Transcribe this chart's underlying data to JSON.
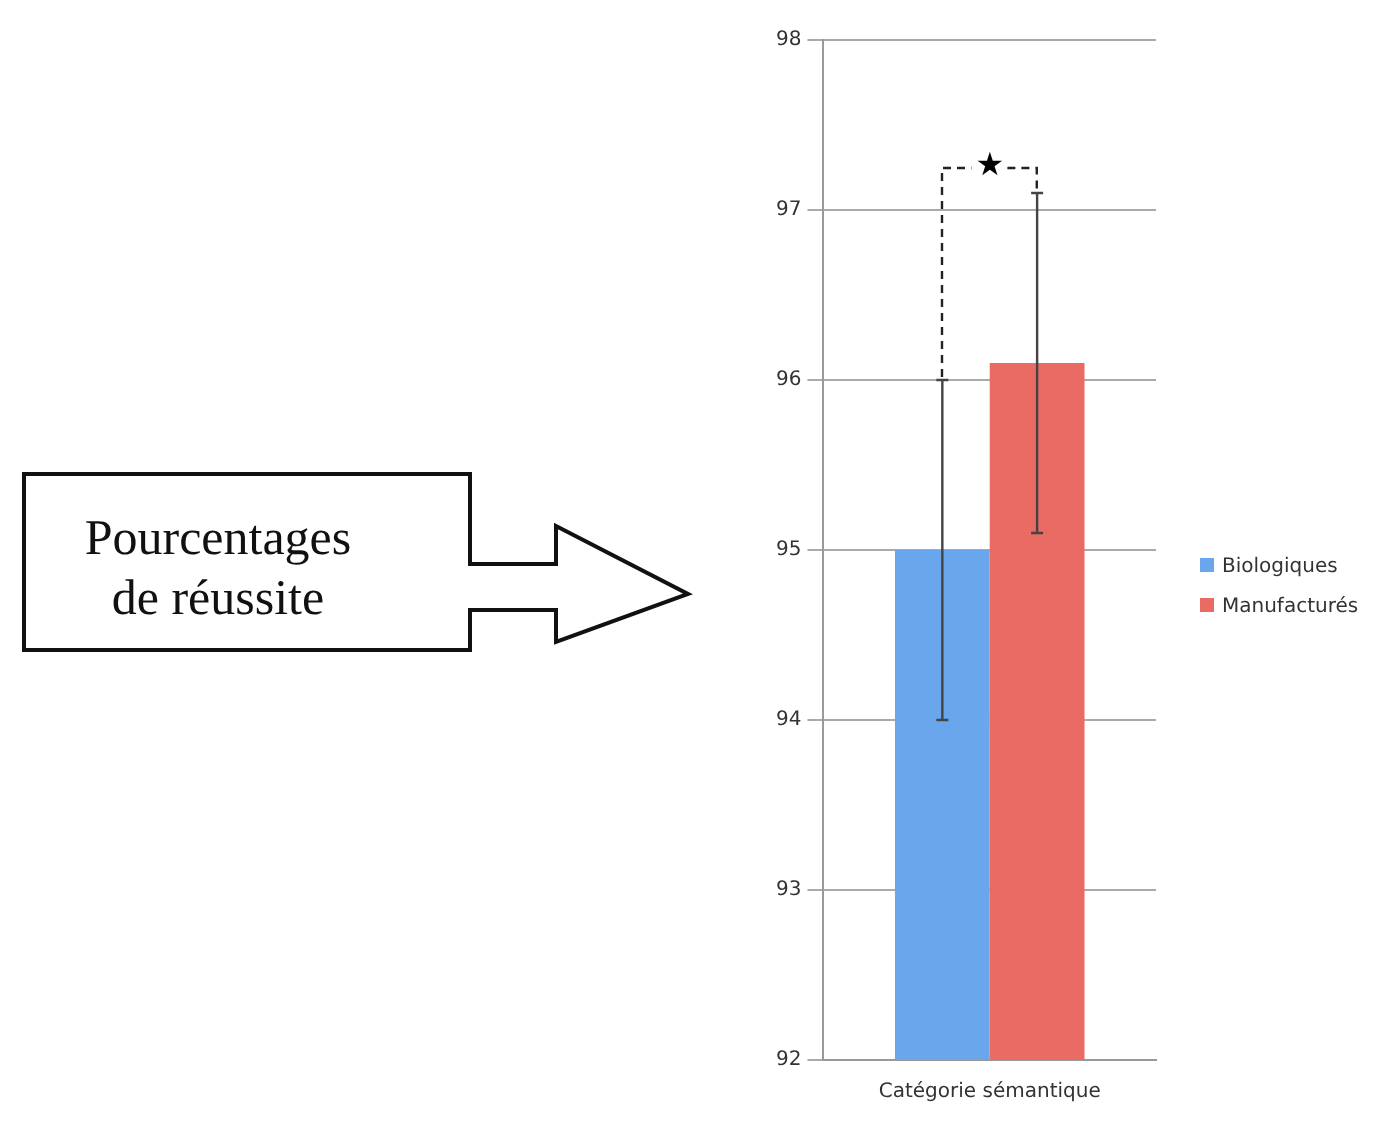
{
  "chart_data": {
    "type": "bar",
    "categories": [
      "Catégorie sémantique"
    ],
    "series": [
      {
        "name": "Biologiques",
        "color": "#6aa6ec",
        "values": [
          95
        ],
        "errors": [
          1
        ]
      },
      {
        "name": "Manufacturés",
        "color": "#ea6b63",
        "values": [
          96.1
        ],
        "errors": [
          1
        ]
      }
    ],
    "ylim": [
      92,
      98
    ],
    "yticks": [
      92,
      93,
      94,
      95,
      96,
      97,
      98
    ],
    "grid": "y",
    "legend": "right",
    "annotations": [
      "Pourcentages de réussite",
      "★"
    ]
  }
}
